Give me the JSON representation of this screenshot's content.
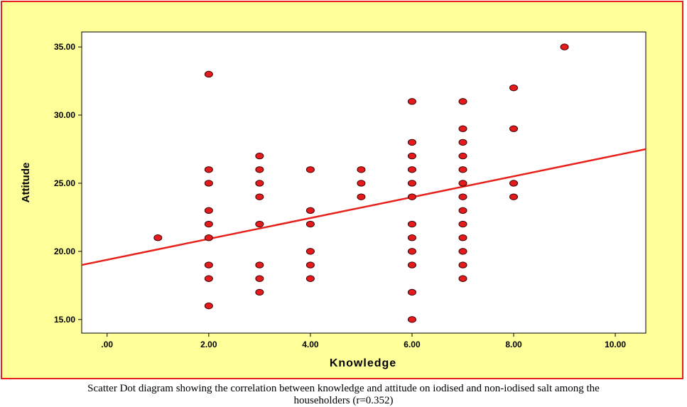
{
  "caption": {
    "line1": "Scatter Dot diagram showing the correlation between knowledge and attitude on iodised and non-iodised salt among the",
    "line2": "householders (r=0.352)"
  },
  "colors": {
    "page_background": "#ffff99",
    "frame_border": "#e8201a",
    "plot_background": "#ffffff",
    "marker_fill": "#e41a1c",
    "marker_edge": "#3a0000",
    "fit_line": "#e8201a"
  },
  "chart_data": {
    "type": "scatter",
    "xlabel": "Knowledge",
    "ylabel": "Attitude",
    "xlim": [
      -0.5,
      10.6
    ],
    "ylim": [
      14,
      36.1
    ],
    "x_ticks": [
      0,
      2,
      4,
      6,
      8,
      10
    ],
    "x_tick_labels": [
      ".00",
      "2.00",
      "4.00",
      "6.00",
      "8.00",
      "10.00"
    ],
    "y_ticks": [
      15,
      20,
      25,
      30,
      35
    ],
    "y_tick_labels": [
      "15.00",
      "20.00",
      "25.00",
      "30.00",
      "35.00"
    ],
    "grid": false,
    "points": [
      [
        1,
        21
      ],
      [
        2,
        33
      ],
      [
        2,
        26
      ],
      [
        2,
        25
      ],
      [
        2,
        23
      ],
      [
        2,
        22
      ],
      [
        2,
        21
      ],
      [
        2,
        19
      ],
      [
        2,
        18
      ],
      [
        2,
        16
      ],
      [
        3,
        27
      ],
      [
        3,
        26
      ],
      [
        3,
        25
      ],
      [
        3,
        24
      ],
      [
        3,
        22
      ],
      [
        3,
        19
      ],
      [
        3,
        18
      ],
      [
        3,
        17
      ],
      [
        4,
        26
      ],
      [
        4,
        23
      ],
      [
        4,
        22
      ],
      [
        4,
        20
      ],
      [
        4,
        19
      ],
      [
        4,
        18
      ],
      [
        5,
        26
      ],
      [
        5,
        25
      ],
      [
        5,
        24
      ],
      [
        6,
        31
      ],
      [
        6,
        28
      ],
      [
        6,
        27
      ],
      [
        6,
        26
      ],
      [
        6,
        25
      ],
      [
        6,
        24
      ],
      [
        6,
        22
      ],
      [
        6,
        21
      ],
      [
        6,
        20
      ],
      [
        6,
        19
      ],
      [
        6,
        17
      ],
      [
        6,
        15
      ],
      [
        7,
        31
      ],
      [
        7,
        29
      ],
      [
        7,
        28
      ],
      [
        7,
        27
      ],
      [
        7,
        26
      ],
      [
        7,
        25
      ],
      [
        7,
        24
      ],
      [
        7,
        23
      ],
      [
        7,
        22
      ],
      [
        7,
        21
      ],
      [
        7,
        20
      ],
      [
        7,
        19
      ],
      [
        7,
        18
      ],
      [
        8,
        32
      ],
      [
        8,
        29
      ],
      [
        8,
        25
      ],
      [
        8,
        24
      ],
      [
        9,
        35
      ]
    ],
    "fit_line": {
      "x": [
        -0.5,
        10.6
      ],
      "y": [
        19.0,
        27.5
      ]
    }
  }
}
